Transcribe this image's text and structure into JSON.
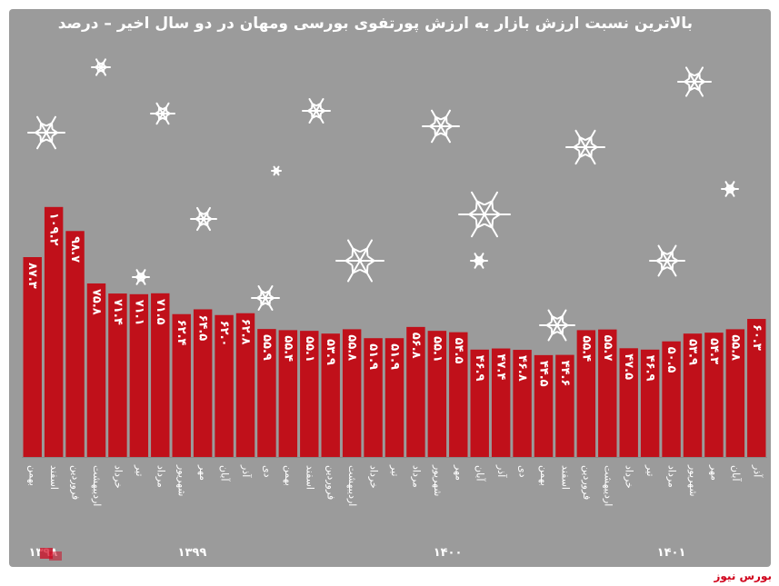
{
  "title": "بالاترین نسبت ارزش بازار به ارزش پورتفوی بورسی ومهان در دو سال اخیر – درصد",
  "brand": {
    "name": "بورس نیوز",
    "color": "#d0021b"
  },
  "colors": {
    "bar": "#c0101a",
    "background": "#9b9b9b",
    "text": "#ffffff"
  },
  "chart_data": {
    "type": "bar",
    "grid": false,
    "legend": "none",
    "ylim": [
      0,
      120
    ],
    "categories": [
      "بهمن",
      "اسفند",
      "فروردین",
      "اردیبهشت",
      "خرداد",
      "تیر",
      "مرداد",
      "شهریور",
      "مهر",
      "آبان",
      "آذر",
      "دی",
      "بهمن",
      "اسفند",
      "فروردین",
      "اردیبهشت",
      "خرداد",
      "تیر",
      "مرداد",
      "شهریور",
      "مهر",
      "آبان",
      "آذر",
      "دی",
      "بهمن",
      "اسفند",
      "فروردین",
      "اردیبهشت",
      "خرداد",
      "تیر",
      "مرداد",
      "شهریور",
      "مهر",
      "آبان",
      "آذر"
    ],
    "values": [
      87.3,
      109.2,
      98.7,
      75.8,
      71.4,
      71.1,
      71.5,
      62.4,
      64.5,
      62.0,
      62.8,
      55.9,
      55.4,
      55.1,
      53.9,
      55.8,
      51.9,
      51.9,
      56.8,
      55.1,
      54.5,
      46.9,
      47.4,
      46.8,
      44.5,
      44.6,
      55.4,
      55.7,
      47.5,
      46.9,
      50.5,
      53.9,
      54.3,
      55.8,
      60.3
    ],
    "value_labels": [
      "۸۷.۳",
      "۱۰۹.۲",
      "۹۸.۷",
      "۷۵.۸",
      "۷۱.۴",
      "۷۱.۱",
      "۷۱.۵",
      "۶۲.۴",
      "۶۴.۵",
      "۶۲.۰",
      "۶۲.۸",
      "۵۵.۹",
      "۵۵.۴",
      "۵۵.۱",
      "۵۳.۹",
      "۵۵.۸",
      "۵۱.۹",
      "۵۱.۹",
      "۵۶.۸",
      "۵۵.۱",
      "۵۴.۵",
      "۴۶.۹",
      "۴۷.۴",
      "۴۶.۸",
      "۴۴.۵",
      "۴۴.۶",
      "۵۵.۴",
      "۵۵.۷",
      "۴۷.۵",
      "۴۶.۹",
      "۵۰.۵",
      "۵۳.۹",
      "۵۴.۳",
      "۵۵.۸",
      "۶۰.۳"
    ],
    "years": [
      {
        "label": "۱۳۹۸",
        "from": 0,
        "to": 1
      },
      {
        "label": "۱۳۹۹",
        "from": 2,
        "to": 13
      },
      {
        "label": "۱۴۰۰",
        "from": 14,
        "to": 25
      },
      {
        "label": "۱۴۰۱",
        "from": 26,
        "to": 34
      }
    ]
  },
  "decorations": {
    "icon": "snowflake-icon"
  }
}
